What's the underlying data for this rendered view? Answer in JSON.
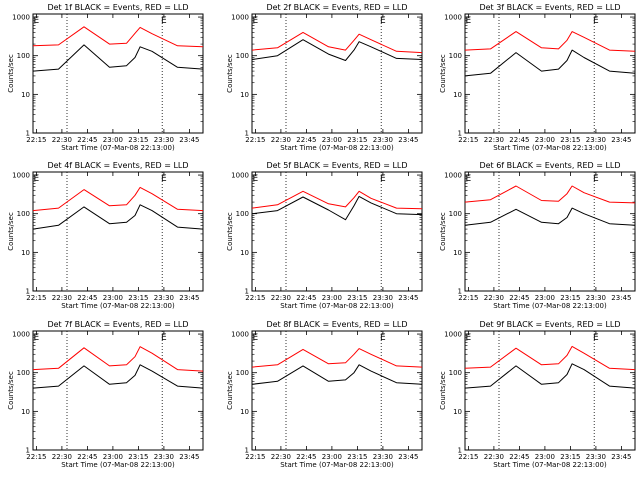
{
  "figure": {
    "background": "#ffffff",
    "line_colors": {
      "events": "#000000",
      "lld": "#ff0000"
    }
  },
  "chart_data": [
    {
      "type": "line",
      "title": "Det 1f BLACK = Events, RED = LLD",
      "xlabel": "Start Time (07-Mar-08 22:13:00)",
      "ylabel": "Counts/sec",
      "x_ticks": [
        "22:15",
        "22:30",
        "22:45",
        "23:00",
        "23:15",
        "23:30",
        "23:45"
      ],
      "y_ticks": [
        "1",
        "10",
        "100",
        "1000"
      ],
      "yscale": "log",
      "ylim": [
        1,
        1200
      ],
      "markers": [
        "E",
        "E"
      ],
      "marker_times": [
        "22:15",
        "23:30"
      ],
      "vlines": [
        "22:33",
        "23:29"
      ],
      "x": [
        "22:13",
        "22:28",
        "22:43",
        "22:58",
        "23:08",
        "23:13",
        "23:16",
        "23:23",
        "23:38",
        "23:53"
      ],
      "series": [
        {
          "name": "",
          "color": "#ff0000",
          "values": [
            180,
            190,
            560,
            200,
            210,
            380,
            540,
            370,
            180,
            170
          ]
        },
        {
          "name": "",
          "color": "#000000",
          "values": [
            40,
            45,
            190,
            50,
            55,
            90,
            170,
            130,
            50,
            45
          ]
        }
      ]
    },
    {
      "type": "line",
      "title": "Det 2f BLACK = Events, RED = LLD",
      "xlabel": "Start Time (07-Mar-08 22:13:00)",
      "ylabel": "Counts/sec",
      "x_ticks": [
        "22:15",
        "22:30",
        "22:45",
        "23:00",
        "23:15",
        "23:30",
        "23:45"
      ],
      "y_ticks": [
        "1",
        "10",
        "100",
        "1000"
      ],
      "yscale": "log",
      "ylim": [
        1,
        1200
      ],
      "markers": [
        "E",
        "E"
      ],
      "marker_times": [
        "22:15",
        "23:30"
      ],
      "vlines": [
        "22:33",
        "23:29"
      ],
      "x": [
        "22:13",
        "22:28",
        "22:43",
        "22:58",
        "23:08",
        "23:13",
        "23:16",
        "23:23",
        "23:38",
        "23:53"
      ],
      "series": [
        {
          "name": "",
          "color": "#ff0000",
          "values": [
            140,
            160,
            400,
            170,
            140,
            250,
            360,
            260,
            130,
            120
          ]
        },
        {
          "name": "",
          "color": "#000000",
          "values": [
            80,
            100,
            260,
            110,
            75,
            140,
            230,
            170,
            85,
            80
          ]
        }
      ]
    },
    {
      "type": "line",
      "title": "Det 3f BLACK = Events, RED = LLD",
      "xlabel": "Start Time (07-Mar-08 22:13:00)",
      "ylabel": "Counts/sec",
      "x_ticks": [
        "22:15",
        "22:30",
        "22:45",
        "23:00",
        "23:15",
        "23:30",
        "23:45"
      ],
      "y_ticks": [
        "1",
        "10",
        "100",
        "1000"
      ],
      "yscale": "log",
      "ylim": [
        1,
        1200
      ],
      "markers": [
        "E",
        "E"
      ],
      "marker_times": [
        "22:15",
        "23:30"
      ],
      "vlines": [
        "22:33",
        "23:29"
      ],
      "x": [
        "22:13",
        "22:28",
        "22:43",
        "22:58",
        "23:08",
        "23:13",
        "23:16",
        "23:23",
        "23:38",
        "23:53"
      ],
      "series": [
        {
          "name": "",
          "color": "#ff0000",
          "values": [
            140,
            150,
            420,
            160,
            150,
            250,
            420,
            300,
            140,
            130
          ]
        },
        {
          "name": "",
          "color": "#000000",
          "values": [
            30,
            35,
            120,
            40,
            45,
            75,
            140,
            90,
            40,
            35
          ]
        }
      ]
    },
    {
      "type": "line",
      "title": "Det 4f BLACK = Events, RED = LLD",
      "xlabel": "Start Time (07-Mar-08 22:13:00)",
      "ylabel": "Counts/sec",
      "x_ticks": [
        "22:15",
        "22:30",
        "22:45",
        "23:00",
        "23:15",
        "23:30",
        "23:45"
      ],
      "y_ticks": [
        "1",
        "10",
        "100",
        "1000"
      ],
      "yscale": "log",
      "ylim": [
        1,
        1200
      ],
      "markers": [
        "E",
        "E"
      ],
      "marker_times": [
        "22:15",
        "23:30"
      ],
      "vlines": [
        "22:33",
        "23:29"
      ],
      "x": [
        "22:13",
        "22:28",
        "22:43",
        "22:58",
        "23:08",
        "23:13",
        "23:16",
        "23:23",
        "23:38",
        "23:53"
      ],
      "series": [
        {
          "name": "",
          "color": "#ff0000",
          "values": [
            120,
            140,
            420,
            160,
            170,
            300,
            480,
            330,
            130,
            120
          ]
        },
        {
          "name": "",
          "color": "#000000",
          "values": [
            40,
            50,
            150,
            55,
            60,
            90,
            170,
            120,
            45,
            40
          ]
        }
      ]
    },
    {
      "type": "line",
      "title": "Det 5f BLACK = Events, RED = LLD",
      "xlabel": "Start Time (07-Mar-08 22:13:00)",
      "ylabel": "Counts/sec",
      "x_ticks": [
        "22:15",
        "22:30",
        "22:45",
        "23:00",
        "23:15",
        "23:30",
        "23:45"
      ],
      "y_ticks": [
        "1",
        "10",
        "100",
        "1000"
      ],
      "yscale": "log",
      "ylim": [
        1,
        1200
      ],
      "markers": [
        "E",
        "E"
      ],
      "marker_times": [
        "22:15",
        "23:30"
      ],
      "vlines": [
        "22:33",
        "23:29"
      ],
      "x": [
        "22:13",
        "22:28",
        "22:43",
        "22:58",
        "23:08",
        "23:13",
        "23:16",
        "23:23",
        "23:38",
        "23:53"
      ],
      "series": [
        {
          "name": "",
          "color": "#ff0000",
          "values": [
            140,
            170,
            380,
            180,
            150,
            260,
            380,
            250,
            140,
            135
          ]
        },
        {
          "name": "",
          "color": "#000000",
          "values": [
            100,
            120,
            270,
            125,
            70,
            160,
            280,
            190,
            100,
            95
          ]
        }
      ]
    },
    {
      "type": "line",
      "title": "Det 6f BLACK = Events, RED = LLD",
      "xlabel": "Start Time (07-Mar-08 22:13:00)",
      "ylabel": "Counts/sec",
      "x_ticks": [
        "22:15",
        "22:30",
        "22:45",
        "23:00",
        "23:15",
        "23:30",
        "23:45"
      ],
      "y_ticks": [
        "1",
        "10",
        "100",
        "1000"
      ],
      "yscale": "log",
      "ylim": [
        1,
        1200
      ],
      "markers": [
        "E",
        "E"
      ],
      "marker_times": [
        "22:15",
        "23:30"
      ],
      "vlines": [
        "22:33",
        "23:29"
      ],
      "x": [
        "22:13",
        "22:28",
        "22:43",
        "22:58",
        "23:08",
        "23:13",
        "23:16",
        "23:23",
        "23:38",
        "23:53"
      ],
      "series": [
        {
          "name": "",
          "color": "#ff0000",
          "values": [
            200,
            230,
            520,
            220,
            210,
            330,
            520,
            350,
            200,
            190
          ]
        },
        {
          "name": "",
          "color": "#000000",
          "values": [
            50,
            60,
            130,
            60,
            55,
            80,
            140,
            100,
            55,
            50
          ]
        }
      ]
    },
    {
      "type": "line",
      "title": "Det 7f BLACK = Events, RED = LLD",
      "xlabel": "Start Time (07-Mar-08 22:13:00)",
      "ylabel": "Counts/sec",
      "x_ticks": [
        "22:15",
        "22:30",
        "22:45",
        "23:00",
        "23:15",
        "23:30",
        "23:45"
      ],
      "y_ticks": [
        "1",
        "10",
        "100",
        "1000"
      ],
      "yscale": "log",
      "ylim": [
        1,
        1200
      ],
      "markers": [
        "E",
        "E"
      ],
      "marker_times": [
        "22:15",
        "23:30"
      ],
      "vlines": [
        "22:33",
        "23:29"
      ],
      "x": [
        "22:13",
        "22:28",
        "22:43",
        "22:58",
        "23:08",
        "23:13",
        "23:16",
        "23:23",
        "23:38",
        "23:53"
      ],
      "series": [
        {
          "name": "",
          "color": "#ff0000",
          "values": [
            120,
            130,
            440,
            150,
            160,
            260,
            470,
            320,
            120,
            110
          ]
        },
        {
          "name": "",
          "color": "#000000",
          "values": [
            40,
            45,
            150,
            50,
            55,
            85,
            160,
            110,
            45,
            40
          ]
        }
      ]
    },
    {
      "type": "line",
      "title": "Det 8f BLACK = Events, RED = LLD",
      "xlabel": "Start Time (07-Mar-08 22:13:00)",
      "ylabel": "Counts/sec",
      "x_ticks": [
        "22:15",
        "22:30",
        "22:45",
        "23:00",
        "23:15",
        "23:30",
        "23:45"
      ],
      "y_ticks": [
        "1",
        "10",
        "100",
        "1000"
      ],
      "yscale": "log",
      "ylim": [
        1,
        1200
      ],
      "markers": [
        "E",
        "E"
      ],
      "marker_times": [
        "22:15",
        "23:30"
      ],
      "vlines": [
        "22:33",
        "23:29"
      ],
      "x": [
        "22:13",
        "22:28",
        "22:43",
        "22:58",
        "23:08",
        "23:13",
        "23:16",
        "23:23",
        "23:38",
        "23:53"
      ],
      "series": [
        {
          "name": "",
          "color": "#ff0000",
          "values": [
            140,
            160,
            400,
            170,
            180,
            300,
            420,
            300,
            150,
            140
          ]
        },
        {
          "name": "",
          "color": "#000000",
          "values": [
            50,
            60,
            150,
            60,
            65,
            100,
            160,
            110,
            55,
            50
          ]
        }
      ]
    },
    {
      "type": "line",
      "title": "Det 9f BLACK = Events, RED = LLD",
      "xlabel": "Start Time (07-Mar-08 22:13:00)",
      "ylabel": "Counts/sec",
      "x_ticks": [
        "22:15",
        "22:30",
        "22:45",
        "23:00",
        "23:15",
        "23:30",
        "23:45"
      ],
      "y_ticks": [
        "1",
        "10",
        "100",
        "1000"
      ],
      "yscale": "log",
      "ylim": [
        1,
        1200
      ],
      "markers": [
        "E",
        "E"
      ],
      "marker_times": [
        "22:15",
        "23:30"
      ],
      "vlines": [
        "22:33",
        "23:29"
      ],
      "x": [
        "22:13",
        "22:28",
        "22:43",
        "22:58",
        "23:08",
        "23:13",
        "23:16",
        "23:23",
        "23:38",
        "23:53"
      ],
      "series": [
        {
          "name": "",
          "color": "#ff0000",
          "values": [
            130,
            140,
            430,
            160,
            170,
            280,
            480,
            320,
            130,
            120
          ]
        },
        {
          "name": "",
          "color": "#000000",
          "values": [
            40,
            45,
            150,
            50,
            55,
            90,
            170,
            120,
            45,
            40
          ]
        }
      ]
    }
  ]
}
